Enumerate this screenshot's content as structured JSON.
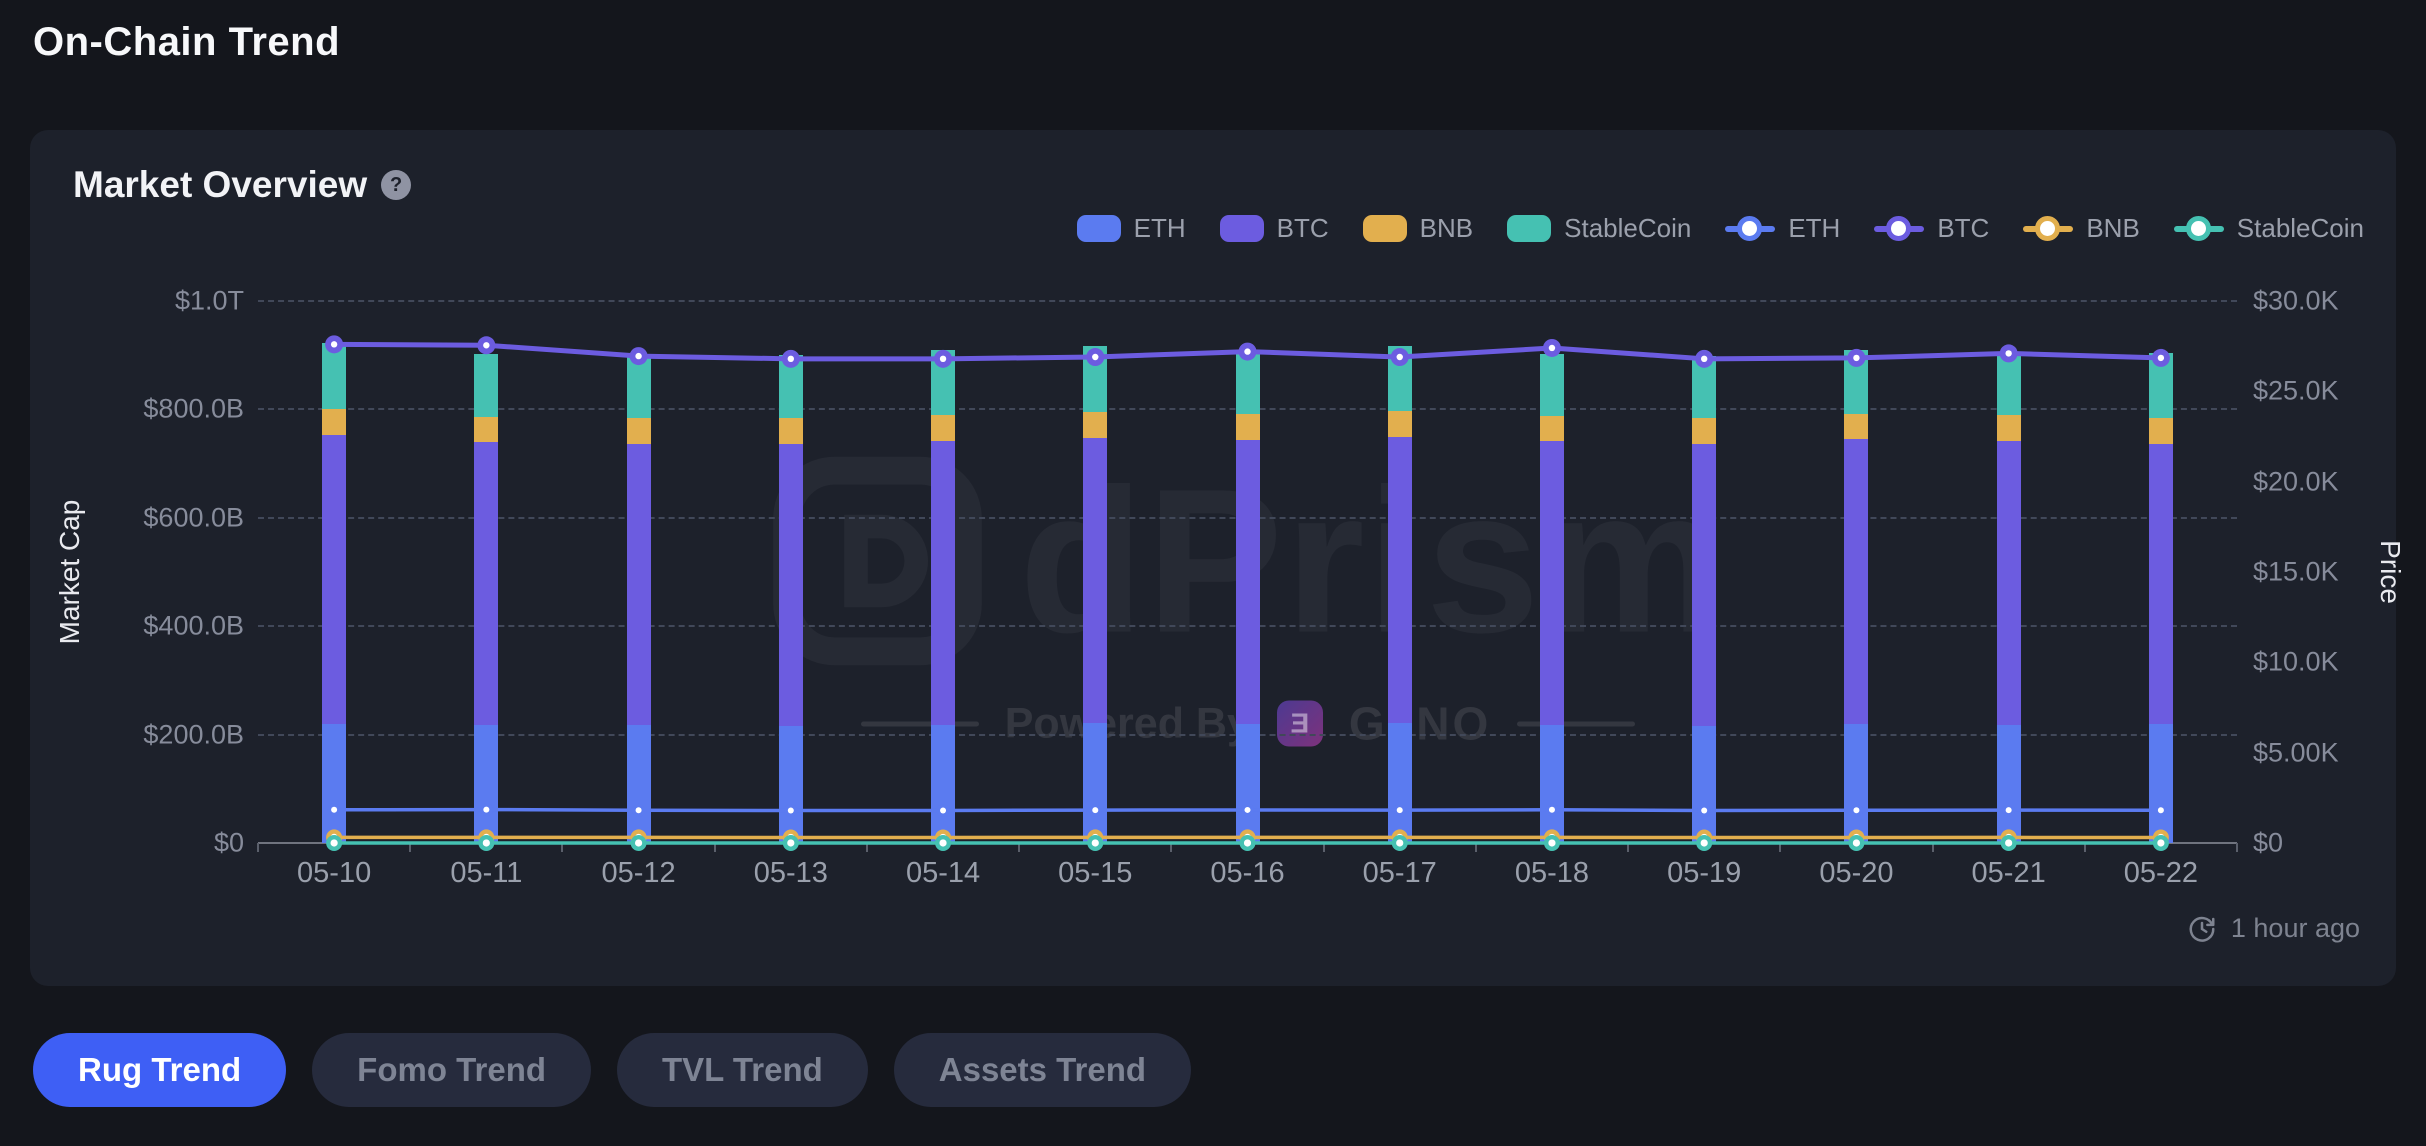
{
  "page": {
    "title": "On-Chain Trend"
  },
  "card": {
    "title": "Market Overview",
    "help_glyph": "?",
    "updated": "1 hour ago"
  },
  "colors": {
    "page_bg": "#14161c",
    "card_bg": "#1d212b",
    "accent_blue": "#3e5ff5",
    "eth": "#5b7bf0",
    "btc": "#6c5ce0",
    "bnb": "#e2af4e",
    "stablecoin": "#45c1b2"
  },
  "legend": {
    "bars": [
      {
        "label": "ETH",
        "color": "#5b7bf0"
      },
      {
        "label": "BTC",
        "color": "#6c5ce0"
      },
      {
        "label": "BNB",
        "color": "#e2af4e"
      },
      {
        "label": "StableCoin",
        "color": "#45c1b2"
      }
    ],
    "lines": [
      {
        "label": "ETH",
        "color": "#5b7bf0"
      },
      {
        "label": "BTC",
        "color": "#6c5ce0"
      },
      {
        "label": "BNB",
        "color": "#e2af4e"
      },
      {
        "label": "StableCoin",
        "color": "#45c1b2"
      }
    ]
  },
  "watermark": {
    "brand": "dPrism",
    "powered_by": "Powered By",
    "powered_brand": "G3NO",
    "powered_icon_glyph": "Ǝ"
  },
  "buttons": [
    {
      "label": "Rug Trend",
      "active": true
    },
    {
      "label": "Fomo Trend",
      "active": false
    },
    {
      "label": "TVL Trend",
      "active": false
    },
    {
      "label": "Assets Trend",
      "active": false
    }
  ],
  "chart_data": {
    "type": "mixed-stacked-bar-line",
    "categories": [
      "05-10",
      "05-11",
      "05-12",
      "05-13",
      "05-14",
      "05-15",
      "05-16",
      "05-17",
      "05-18",
      "05-19",
      "05-20",
      "05-21",
      "05-22"
    ],
    "left_axis": {
      "title": "Market Cap",
      "unit": "USD billions",
      "min": 0,
      "max_billions": 1000,
      "ticks_top_to_bottom": [
        "$1.0T",
        "$800.0B",
        "$600.0B",
        "$400.0B",
        "$200.0B",
        "$0"
      ],
      "gridlines": "dashed"
    },
    "right_axis": {
      "title": "Price",
      "unit": "USD",
      "min": 0,
      "max_usd": 30000,
      "ticks_top_to_bottom": [
        "$30.0K",
        "$25.0K",
        "$20.0K",
        "$15.0K",
        "$10.0K",
        "$5.00K",
        "$0"
      ]
    },
    "bar_series": [
      {
        "name": "ETH",
        "stack": "marketcap",
        "color": "#5b7bf0",
        "values_billions": [
          219,
          218,
          217,
          216,
          218,
          222,
          219,
          221,
          218,
          216,
          219,
          218,
          219
        ]
      },
      {
        "name": "BTC",
        "stack": "marketcap",
        "color": "#6c5ce0",
        "values_billions": [
          534,
          521,
          520,
          521,
          524,
          526,
          525,
          528,
          523,
          521,
          526,
          524,
          518
        ]
      },
      {
        "name": "BNB",
        "stack": "marketcap",
        "color": "#e2af4e",
        "values_billions": [
          48,
          47,
          47,
          48,
          47,
          48,
          47,
          48,
          47,
          47,
          47,
          48,
          48
        ]
      },
      {
        "name": "StableCoin",
        "stack": "marketcap",
        "color": "#45c1b2",
        "values_billions": [
          121,
          116,
          116,
          115,
          120,
          121,
          118,
          120,
          114,
          114,
          117,
          114,
          119
        ]
      }
    ],
    "line_series": [
      {
        "name": "ETH",
        "color": "#5b7bf0",
        "line_width": 3.5,
        "marker_r": 6.5,
        "dot_r": 3,
        "values_usd": [
          1840,
          1850,
          1810,
          1800,
          1800,
          1820,
          1830,
          1820,
          1840,
          1800,
          1810,
          1820,
          1810
        ]
      },
      {
        "name": "BNB",
        "color": "#e2af4e",
        "line_width": 3.5,
        "marker_r": 8,
        "dot_r": 3.6,
        "values_usd": [
          312,
          310,
          308,
          306,
          307,
          309,
          310,
          308,
          309,
          306,
          307,
          308,
          307
        ]
      },
      {
        "name": "StableCoin",
        "color": "#45c1b2",
        "line_width": 3.5,
        "marker_r": 8,
        "dot_r": 3.6,
        "values_usd": [
          1,
          1,
          1,
          1,
          1,
          1,
          1,
          1,
          1,
          1,
          1,
          1,
          1
        ]
      },
      {
        "name": "BTC",
        "color": "#6c5ce0",
        "line_width": 5,
        "marker_r": 9,
        "dot_r": 3.2,
        "values_usd": [
          27600,
          27550,
          26950,
          26800,
          26800,
          26900,
          27200,
          26900,
          27400,
          26800,
          26850,
          27100,
          26850
        ]
      }
    ],
    "legend_position": "top-right",
    "grid": true
  }
}
